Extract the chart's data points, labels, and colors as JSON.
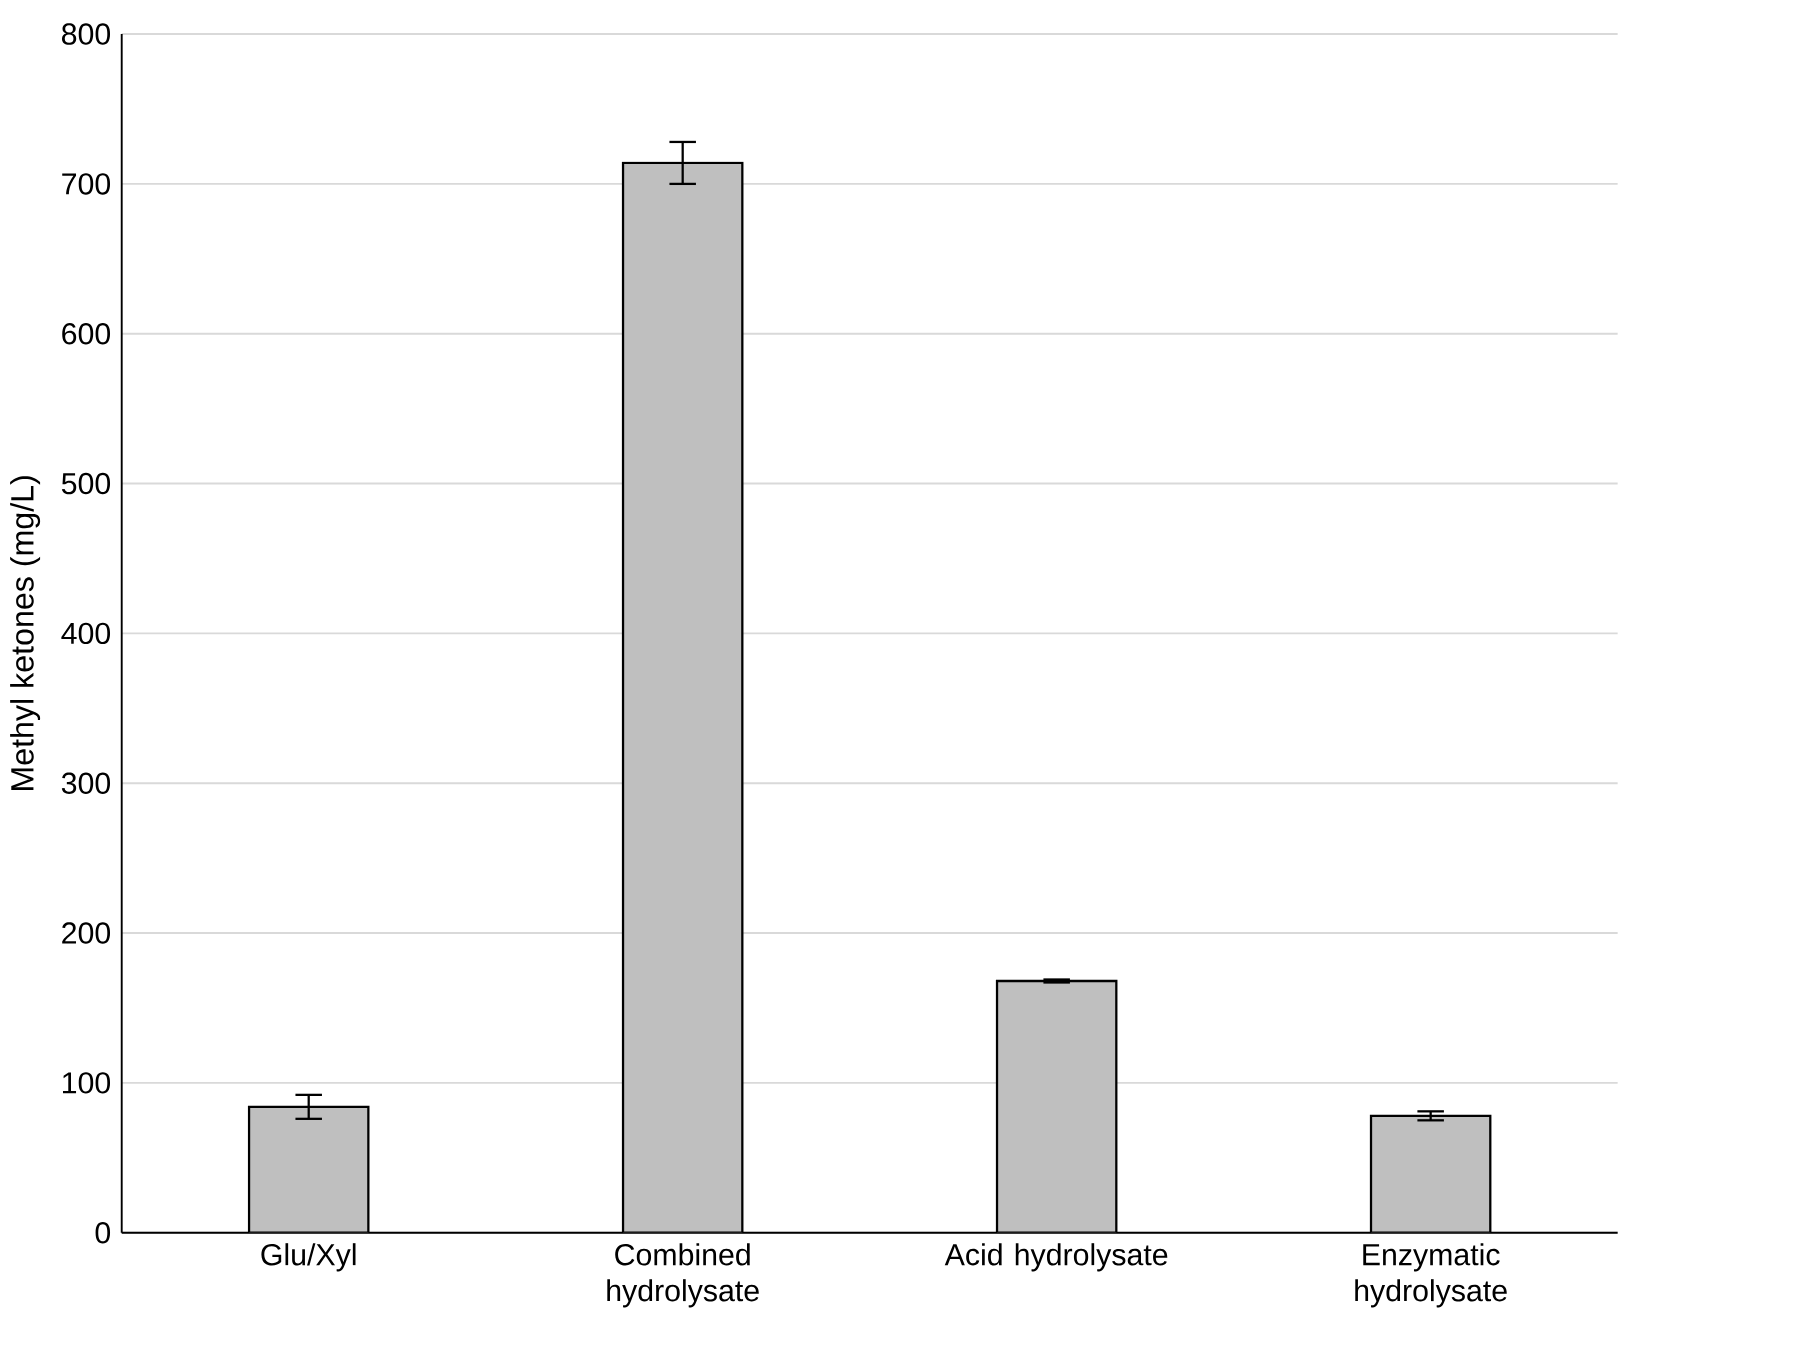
{
  "chart_data": {
    "type": "bar",
    "ylabel": "Methyl ketones (mg/L)",
    "categories": [
      "Glu/Xyl",
      "Combined hydrolysate",
      "Acid hydrolysate",
      "Enzymatic hydrolysate"
    ],
    "values": [
      84,
      714,
      168,
      78
    ],
    "errors": [
      8,
      14,
      1,
      3
    ],
    "color": "#bfbfbf",
    "ylim": [
      0,
      800
    ],
    "yticks": [
      0,
      100,
      200,
      300,
      400,
      500,
      600,
      700,
      800
    ],
    "grid": "y"
  }
}
